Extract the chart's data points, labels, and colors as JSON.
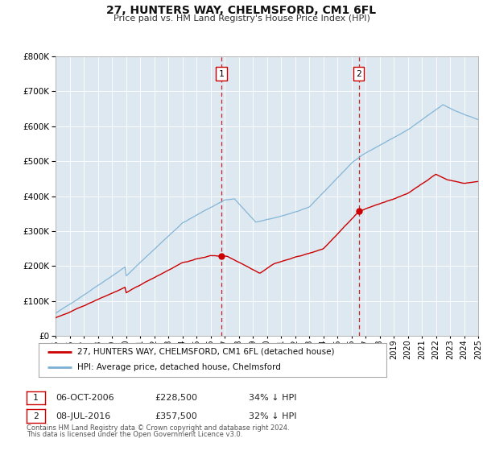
{
  "title": "27, HUNTERS WAY, CHELMSFORD, CM1 6FL",
  "subtitle": "Price paid vs. HM Land Registry's House Price Index (HPI)",
  "legend_entry1": "27, HUNTERS WAY, CHELMSFORD, CM1 6FL (detached house)",
  "legend_entry2": "HPI: Average price, detached house, Chelmsford",
  "transaction1_date": "06-OCT-2006",
  "transaction1_price": "£228,500",
  "transaction1_hpi": "34% ↓ HPI",
  "transaction2_date": "08-JUL-2016",
  "transaction2_price": "£357,500",
  "transaction2_hpi": "32% ↓ HPI",
  "footnote1": "Contains HM Land Registry data © Crown copyright and database right 2024.",
  "footnote2": "This data is licensed under the Open Government Licence v3.0.",
  "hpi_color": "#7ab0d4",
  "price_color": "#cc0000",
  "marker_color": "#cc0000",
  "vline_color": "#cc2222",
  "background_fill": "#dde8f0",
  "ylim": [
    0,
    800000
  ],
  "yticks": [
    0,
    100000,
    200000,
    300000,
    400000,
    500000,
    600000,
    700000,
    800000
  ],
  "transaction1_year": 2006.77,
  "transaction1_value": 228500,
  "transaction2_year": 2016.52,
  "transaction2_value": 357500
}
